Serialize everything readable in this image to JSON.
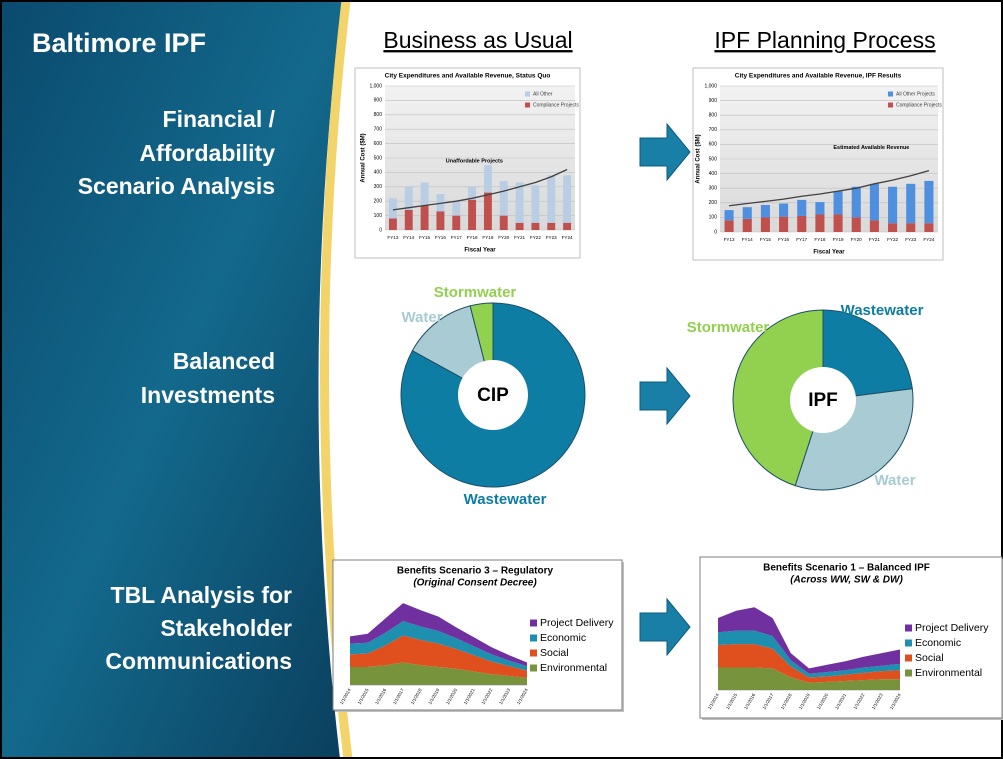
{
  "slide": {
    "title": "Baltimore IPF",
    "headers": [
      "Business as Usual",
      "IPF Planning Process"
    ],
    "rows": [
      {
        "lines": [
          "Financial /",
          "Affordability",
          "Scenario Analysis"
        ]
      },
      {
        "lines": [
          "Balanced",
          "Investments"
        ]
      },
      {
        "lines": [
          "TBL Analysis for",
          "Stakeholder",
          "Communications"
        ]
      }
    ]
  },
  "chart_data": [
    {
      "type": "bar",
      "title": "City Expenditures and Available Revenue, Status Quo",
      "xlabel": "Fiscal Year",
      "ylabel": "Annual Cost ($M)",
      "stacked": true,
      "grid": true,
      "legend": "upper right",
      "annotation": "Unaffordable Projects",
      "categories": [
        "FY13",
        "FY14",
        "FY15",
        "FY16",
        "FY17",
        "FY18",
        "FY19",
        "FY20",
        "FY21",
        "FY22",
        "FY23",
        "FY24"
      ],
      "series": [
        {
          "name": "Compliance Projects",
          "color": "#c0504d",
          "values": [
            80,
            140,
            170,
            130,
            100,
            210,
            260,
            100,
            50,
            50,
            50,
            50
          ]
        },
        {
          "name": "All Other",
          "color": "#b9cde5",
          "values": [
            140,
            160,
            160,
            120,
            100,
            90,
            190,
            240,
            280,
            260,
            330,
            330
          ]
        },
        {
          "type": "line",
          "color": "#404040",
          "values": [
            140,
            155,
            170,
            185,
            200,
            220,
            245,
            270,
            300,
            330,
            370,
            420
          ]
        }
      ],
      "ylim": [
        0,
        1000
      ],
      "yticks": [
        0,
        100,
        200,
        300,
        400,
        500,
        600,
        700,
        800,
        900,
        {
          "value": 1000,
          "label": "1,000"
        }
      ]
    },
    {
      "type": "bar",
      "title": "City Expenditures and Available Revenue, IPF Results",
      "xlabel": "Fiscal Year",
      "ylabel": "Annual Cost ($M)",
      "stacked": true,
      "grid": true,
      "legend": "upper right",
      "annotation": "Estimated Available Revenue",
      "categories": [
        "FY13",
        "FY14",
        "FY15",
        "FY16",
        "FY17",
        "FY18",
        "FY19",
        "FY20",
        "FY21",
        "FY22",
        "FY23",
        "FY24"
      ],
      "series": [
        {
          "name": "Compliance Projects",
          "color": "#c0504d",
          "values": [
            80,
            90,
            100,
            105,
            110,
            120,
            120,
            100,
            80,
            60,
            60,
            60
          ]
        },
        {
          "name": "All Other Projects",
          "color": "#4f8fe0",
          "values": [
            70,
            80,
            85,
            90,
            110,
            85,
            160,
            210,
            250,
            250,
            270,
            290
          ]
        },
        {
          "type": "line",
          "color": "#404040",
          "values": [
            180,
            195,
            210,
            225,
            245,
            260,
            280,
            300,
            330,
            355,
            385,
            420
          ]
        }
      ],
      "ylim": [
        0,
        1000
      ],
      "yticks": [
        0,
        100,
        200,
        300,
        400,
        500,
        600,
        700,
        800,
        900,
        {
          "value": 1000,
          "label": "1,000"
        }
      ]
    },
    {
      "type": "pie",
      "center_label": "CIP",
      "categories": [
        "Wastewater",
        "Water",
        "Stormwater"
      ],
      "values": [
        83,
        13,
        4
      ],
      "colors": [
        "#0e7da3",
        "#a9cbd3",
        "#92d050"
      ]
    },
    {
      "type": "pie",
      "center_label": "IPF",
      "categories": [
        "Wastewater",
        "Water",
        "Stormwater"
      ],
      "values": [
        23,
        32,
        45
      ],
      "colors": [
        "#0e7da3",
        "#a9cbd3",
        "#92d050"
      ]
    },
    {
      "type": "area",
      "title": "Benefits Scenario 3 – Regulatory",
      "subtitle": "(Original Consent Decree)",
      "stacked": true,
      "legend": "right",
      "categories": [
        "1/1/2014",
        "1/1/2015",
        "1/1/2016",
        "1/1/2017",
        "1/1/2018",
        "1/1/2019",
        "1/1/2020",
        "1/1/2021",
        "1/1/2022",
        "1/1/2023",
        "1/1/2024"
      ],
      "series": [
        {
          "name": "Environmental",
          "color": "#77933c",
          "values": [
            20,
            20,
            22,
            25,
            22,
            20,
            18,
            15,
            12,
            10,
            8
          ]
        },
        {
          "name": "Social",
          "color": "#e0501f",
          "values": [
            14,
            15,
            22,
            30,
            28,
            26,
            22,
            18,
            14,
            11,
            8
          ]
        },
        {
          "name": "Economic",
          "color": "#1f8fb0",
          "values": [
            12,
            12,
            14,
            16,
            15,
            14,
            12,
            10,
            8,
            6,
            5
          ]
        },
        {
          "name": "Project Delivery",
          "color": "#7030a0",
          "values": [
            8,
            10,
            16,
            20,
            18,
            16,
            12,
            10,
            8,
            6,
            4
          ]
        }
      ],
      "ylim": [
        0,
        100
      ]
    },
    {
      "type": "area",
      "title": "Benefits Scenario 1 – Balanced IPF",
      "subtitle": "(Across WW, SW & DW)",
      "stacked": true,
      "legend": "right",
      "categories": [
        "1/1/2014",
        "1/1/2015",
        "1/1/2016",
        "1/1/2017",
        "1/1/2018",
        "1/1/2019",
        "1/1/2020",
        "1/1/2021",
        "1/1/2022",
        "1/1/2023",
        "1/1/2024"
      ],
      "series": [
        {
          "name": "Environmental",
          "color": "#77933c",
          "values": [
            25,
            25,
            25,
            24,
            14,
            8,
            9,
            10,
            11,
            12,
            12
          ]
        },
        {
          "name": "Social",
          "color": "#e0501f",
          "values": [
            25,
            26,
            26,
            22,
            12,
            6,
            6,
            7,
            8,
            9,
            10
          ]
        },
        {
          "name": "Economic",
          "color": "#1f8fb0",
          "values": [
            14,
            15,
            15,
            14,
            7,
            4,
            5,
            5,
            6,
            6,
            7
          ]
        },
        {
          "name": "Project Delivery",
          "color": "#7030a0",
          "values": [
            16,
            22,
            26,
            20,
            8,
            6,
            8,
            10,
            12,
            14,
            16
          ]
        }
      ],
      "ylim": [
        0,
        100
      ]
    }
  ]
}
